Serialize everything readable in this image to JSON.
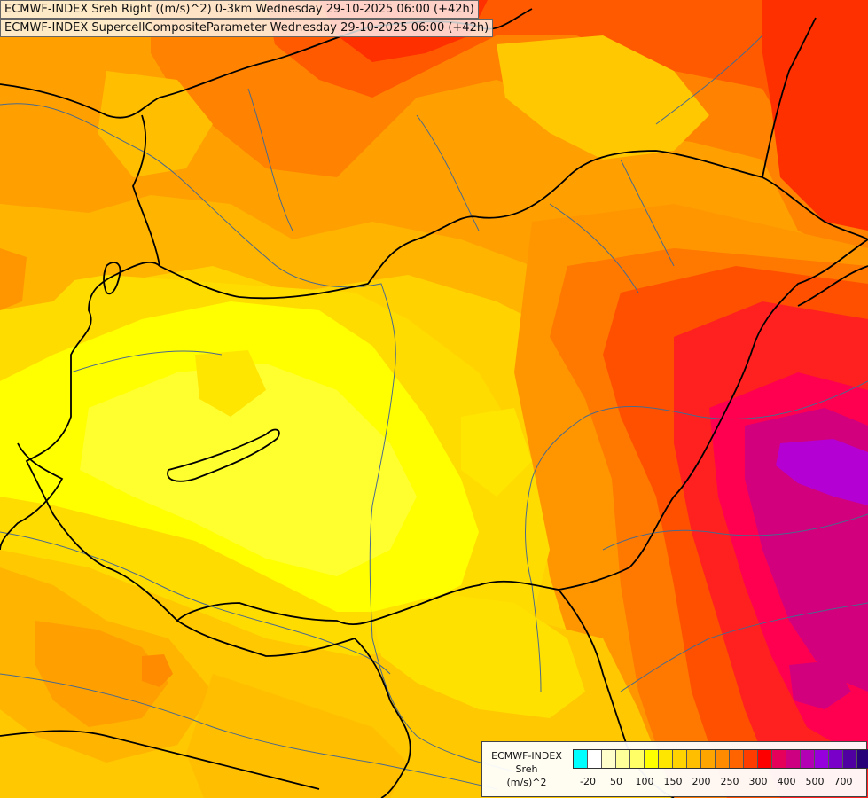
{
  "titles": {
    "line1": "ECMWF-INDEX Sreh Right ((m/s)^2) 0-3km Wednesday 29-10-2025 06:00 (+42h)",
    "line2": "ECMWF-INDEX SupercellCompositeParameter Wednesday 29-10-2025 06:00 (+42h)"
  },
  "legend": {
    "model": "ECMWF-INDEX",
    "parameter": "Sreh",
    "unit": "(m/s)^2",
    "colors": [
      "#00ffff",
      "#ffffff",
      "#ffffcc",
      "#ffff99",
      "#ffff66",
      "#ffff00",
      "#ffe600",
      "#ffd200",
      "#ffbe00",
      "#ffa500",
      "#ff8c00",
      "#ff6400",
      "#ff3c00",
      "#ff0000",
      "#e6005a",
      "#cc0080",
      "#b400b4",
      "#9600dc",
      "#7800c8",
      "#5000a0",
      "#280078"
    ],
    "ticks": [
      "-20",
      "50",
      "100",
      "150",
      "200",
      "250",
      "300",
      "400",
      "500",
      "700"
    ]
  },
  "palette": {
    "yellow": "#ffff00",
    "gold": "#ffd700",
    "amber": "#ffbe00",
    "orange": "#ffa000",
    "deep_orange": "#ff7800",
    "red_orange": "#ff4600",
    "red": "#ff2020",
    "crimson": "#ff0050",
    "magenta": "#d2007d",
    "purple": "#b400d2",
    "border": "#000000",
    "river": "#4a6a8c"
  }
}
